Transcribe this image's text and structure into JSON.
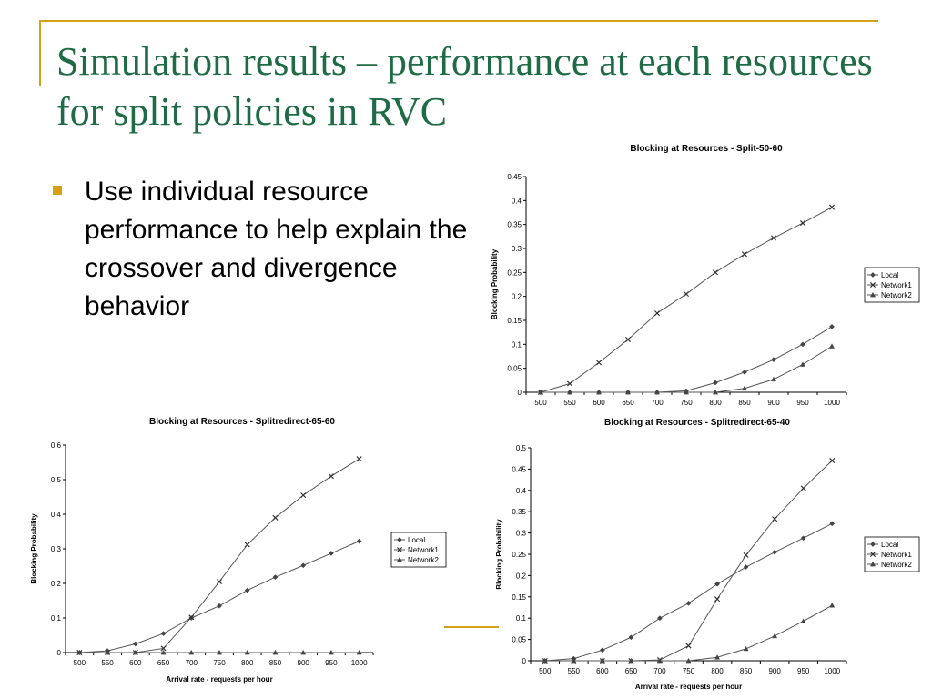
{
  "slide": {
    "title": "Simulation results – performance at each resources for split policies in RVC",
    "bullet": "Use individual resource performance to help explain the crossover and divergence behavior"
  },
  "colors": {
    "title": "#1E6B45",
    "accent": "#D4A017"
  },
  "chart_data": [
    {
      "id": "c1",
      "type": "line",
      "title": "Blocking at Resources - Split-50-60",
      "xlabel": "",
      "ylabel": "Blocking Probability",
      "categories": [
        "500",
        "550",
        "600",
        "650",
        "700",
        "750",
        "800",
        "850",
        "900",
        "950",
        "1000"
      ],
      "ylim": [
        0,
        0.45
      ],
      "yticks": [
        "0",
        "0.05",
        "0.1",
        "0.15",
        "0.2",
        "0.25",
        "0.3",
        "0.35",
        "0.4",
        "0.45"
      ],
      "legend_position": "right",
      "series": [
        {
          "name": "Local",
          "marker": "diamond",
          "values": [
            0,
            0,
            0,
            0,
            0,
            0.003,
            0.02,
            0.042,
            0.068,
            0.1,
            0.137
          ]
        },
        {
          "name": "Network1",
          "marker": "x",
          "values": [
            0,
            0.018,
            0.062,
            0.11,
            0.165,
            0.205,
            0.25,
            0.288,
            0.322,
            0.353,
            0.386
          ]
        },
        {
          "name": "Network2",
          "marker": "triangle",
          "values": [
            0,
            0,
            0,
            0,
            0,
            0,
            0,
            0.008,
            0.027,
            0.058,
            0.096
          ]
        }
      ]
    },
    {
      "id": "c2",
      "type": "line",
      "title": "Blocking at Resources - Splitredirect-65-60",
      "xlabel": "Arrival rate - requests per hour",
      "ylabel": "Blocking Probability",
      "categories": [
        "500",
        "550",
        "600",
        "650",
        "700",
        "750",
        "800",
        "850",
        "900",
        "950",
        "1000"
      ],
      "ylim": [
        0,
        0.6
      ],
      "yticks": [
        "0",
        "0.1",
        "0.2",
        "0.3",
        "0.4",
        "0.5",
        "0.6"
      ],
      "legend_position": "right",
      "series": [
        {
          "name": "Local",
          "marker": "diamond",
          "values": [
            0,
            0.005,
            0.025,
            0.055,
            0.1,
            0.135,
            0.18,
            0.218,
            0.252,
            0.287,
            0.322
          ]
        },
        {
          "name": "Network1",
          "marker": "x",
          "values": [
            0,
            0,
            0,
            0.012,
            0.102,
            0.205,
            0.312,
            0.39,
            0.455,
            0.51,
            0.56
          ]
        },
        {
          "name": "Network2",
          "marker": "triangle",
          "values": [
            0,
            0,
            0,
            0,
            0,
            0,
            0,
            0,
            0,
            0,
            0
          ]
        }
      ]
    },
    {
      "id": "c3",
      "type": "line",
      "title": "Blocking at Resources - Splitredirect-65-40",
      "xlabel": "Arrival rate - requests per hour",
      "ylabel": "Blocking Probability",
      "categories": [
        "500",
        "550",
        "600",
        "650",
        "700",
        "750",
        "800",
        "850",
        "900",
        "950",
        "1000"
      ],
      "ylim": [
        0,
        0.5
      ],
      "yticks": [
        "0",
        "0.05",
        "0.1",
        "0.15",
        "0.2",
        "0.25",
        "0.3",
        "0.35",
        "0.4",
        "0.45",
        "0.5"
      ],
      "legend_position": "right",
      "series": [
        {
          "name": "Local",
          "marker": "diamond",
          "values": [
            0,
            0.005,
            0.025,
            0.055,
            0.1,
            0.135,
            0.18,
            0.22,
            0.255,
            0.288,
            0.322
          ]
        },
        {
          "name": "Network1",
          "marker": "x",
          "values": [
            0,
            0,
            0,
            0,
            0.002,
            0.035,
            0.145,
            0.248,
            0.333,
            0.405,
            0.47
          ]
        },
        {
          "name": "Network2",
          "marker": "triangle",
          "values": [
            0,
            0,
            0,
            0,
            0,
            0,
            0.008,
            0.028,
            0.058,
            0.093,
            0.13
          ]
        }
      ]
    }
  ]
}
